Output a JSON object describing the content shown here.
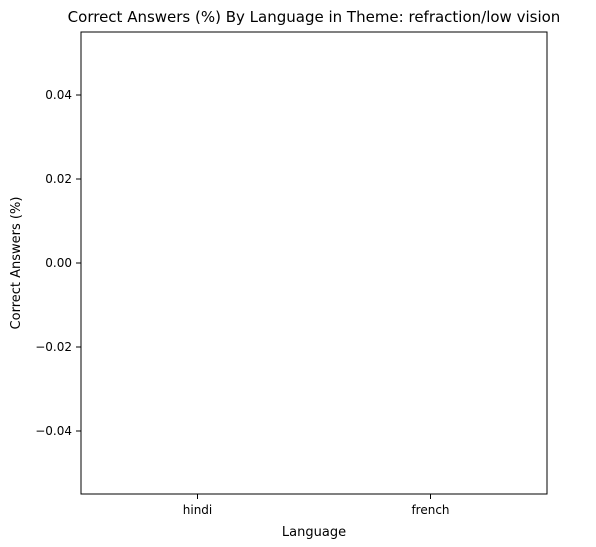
{
  "chart_data": {
    "type": "bar",
    "title": "Correct Answers (%) By Language in Theme: refraction/low vision",
    "xlabel": "Language",
    "ylabel": "Correct Answers (%)",
    "categories": [
      "hindi",
      "french"
    ],
    "values": [
      0,
      0
    ],
    "ylim": [
      -0.055,
      0.055
    ],
    "yticks": [
      -0.04,
      -0.02,
      0.0,
      0.02,
      0.04
    ],
    "ytick_labels": [
      "−0.04",
      "−0.02",
      "0.00",
      "0.02",
      "0.04"
    ],
    "grid": false,
    "legend": "none"
  }
}
